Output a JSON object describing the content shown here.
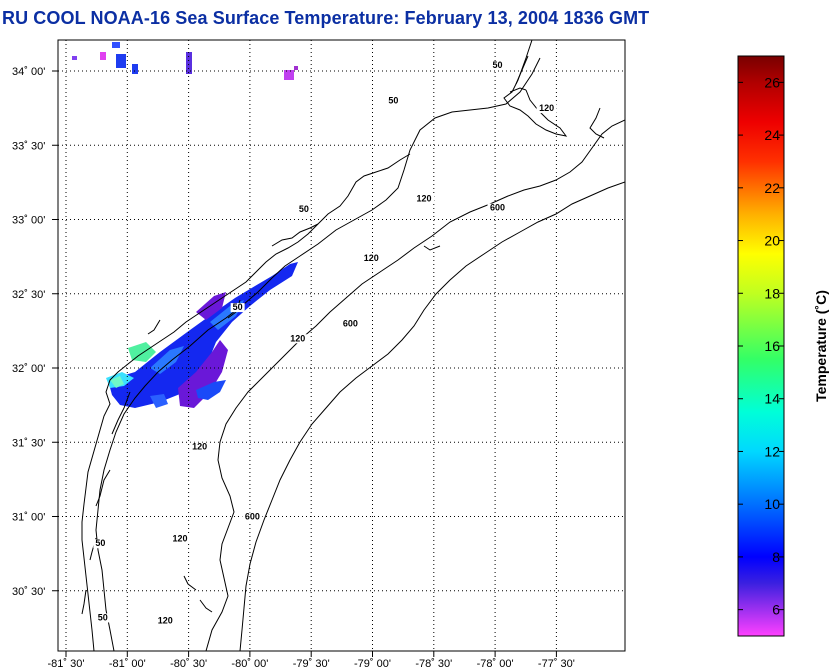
{
  "title": "RU COOL  NOAA-16  Sea Surface Temperature:  February 13, 2004 1836 GMT",
  "map": {
    "lat_ticks": [
      {
        "value": 34.0,
        "label": "34˚ 00'"
      },
      {
        "value": 33.5,
        "label": "33˚ 30'"
      },
      {
        "value": 33.0,
        "label": "33˚ 00'"
      },
      {
        "value": 32.5,
        "label": "32˚ 30'"
      },
      {
        "value": 32.0,
        "label": "32˚ 00'"
      },
      {
        "value": 31.5,
        "label": "31˚ 30'"
      },
      {
        "value": 31.0,
        "label": "31˚ 00'"
      },
      {
        "value": 30.5,
        "label": "30˚ 30'"
      }
    ],
    "lon_ticks": [
      {
        "value": -81.5,
        "label": "-81˚ 30'"
      },
      {
        "value": -81.0,
        "label": "-81˚ 00'"
      },
      {
        "value": -80.5,
        "label": "-80˚ 30'"
      },
      {
        "value": -80.0,
        "label": "-80˚ 00'"
      },
      {
        "value": -79.5,
        "label": "-79˚ 30'"
      },
      {
        "value": -79.0,
        "label": "-79˚ 00'"
      },
      {
        "value": -78.5,
        "label": "-78˚ 30'"
      },
      {
        "value": -78.0,
        "label": "-78˚ 00'"
      },
      {
        "value": -77.5,
        "label": "-77˚ 30'"
      }
    ],
    "grid": "dotted",
    "contour_labels": [
      {
        "text": "50",
        "lon": -77.98,
        "lat": 34.02
      },
      {
        "text": "50",
        "lon": -78.83,
        "lat": 33.78
      },
      {
        "text": "120",
        "lon": -77.58,
        "lat": 33.73
      },
      {
        "text": "50",
        "lon": -79.56,
        "lat": 33.05
      },
      {
        "text": "120",
        "lon": -78.58,
        "lat": 33.12
      },
      {
        "text": "600",
        "lon": -77.98,
        "lat": 33.06
      },
      {
        "text": "120",
        "lon": -79.01,
        "lat": 32.72
      },
      {
        "text": "50",
        "lon": -80.1,
        "lat": 32.39
      },
      {
        "text": "120",
        "lon": -79.61,
        "lat": 32.18
      },
      {
        "text": "600",
        "lon": -79.18,
        "lat": 32.28
      },
      {
        "text": "120",
        "lon": -80.41,
        "lat": 31.45
      },
      {
        "text": "600",
        "lon": -79.98,
        "lat": 30.98
      },
      {
        "text": "50",
        "lon": -81.22,
        "lat": 30.8
      },
      {
        "text": "120",
        "lon": -80.57,
        "lat": 30.83
      },
      {
        "text": "50",
        "lon": -81.2,
        "lat": 30.3
      },
      {
        "text": "120",
        "lon": -80.69,
        "lat": 30.28
      }
    ]
  },
  "colorbar": {
    "label": "Temperature (˚C)",
    "min": 5,
    "max": 27,
    "ticks": [
      {
        "value": 6,
        "label": "6"
      },
      {
        "value": 8,
        "label": "8"
      },
      {
        "value": 10,
        "label": "10"
      },
      {
        "value": 12,
        "label": "12"
      },
      {
        "value": 14,
        "label": "14"
      },
      {
        "value": 16,
        "label": "16"
      },
      {
        "value": 18,
        "label": "18"
      },
      {
        "value": 20,
        "label": "20"
      },
      {
        "value": 22,
        "label": "22"
      },
      {
        "value": 24,
        "label": "24"
      },
      {
        "value": 26,
        "label": "26"
      }
    ],
    "stops": [
      {
        "value": 5,
        "color": "#ff40ff"
      },
      {
        "value": 7,
        "color": "#3b20e0"
      },
      {
        "value": 8,
        "color": "#0000ff"
      },
      {
        "value": 10,
        "color": "#0070ff"
      },
      {
        "value": 12,
        "color": "#00d8ff"
      },
      {
        "value": 13.5,
        "color": "#00ffd8"
      },
      {
        "value": 15.5,
        "color": "#33ff66"
      },
      {
        "value": 18,
        "color": "#c0ff20"
      },
      {
        "value": 19.5,
        "color": "#ffff00"
      },
      {
        "value": 21,
        "color": "#ffb000"
      },
      {
        "value": 23,
        "color": "#ff3000"
      },
      {
        "value": 24.5,
        "color": "#ee0000"
      },
      {
        "value": 26,
        "color": "#b00000"
      },
      {
        "value": 27,
        "color": "#780000"
      }
    ]
  }
}
